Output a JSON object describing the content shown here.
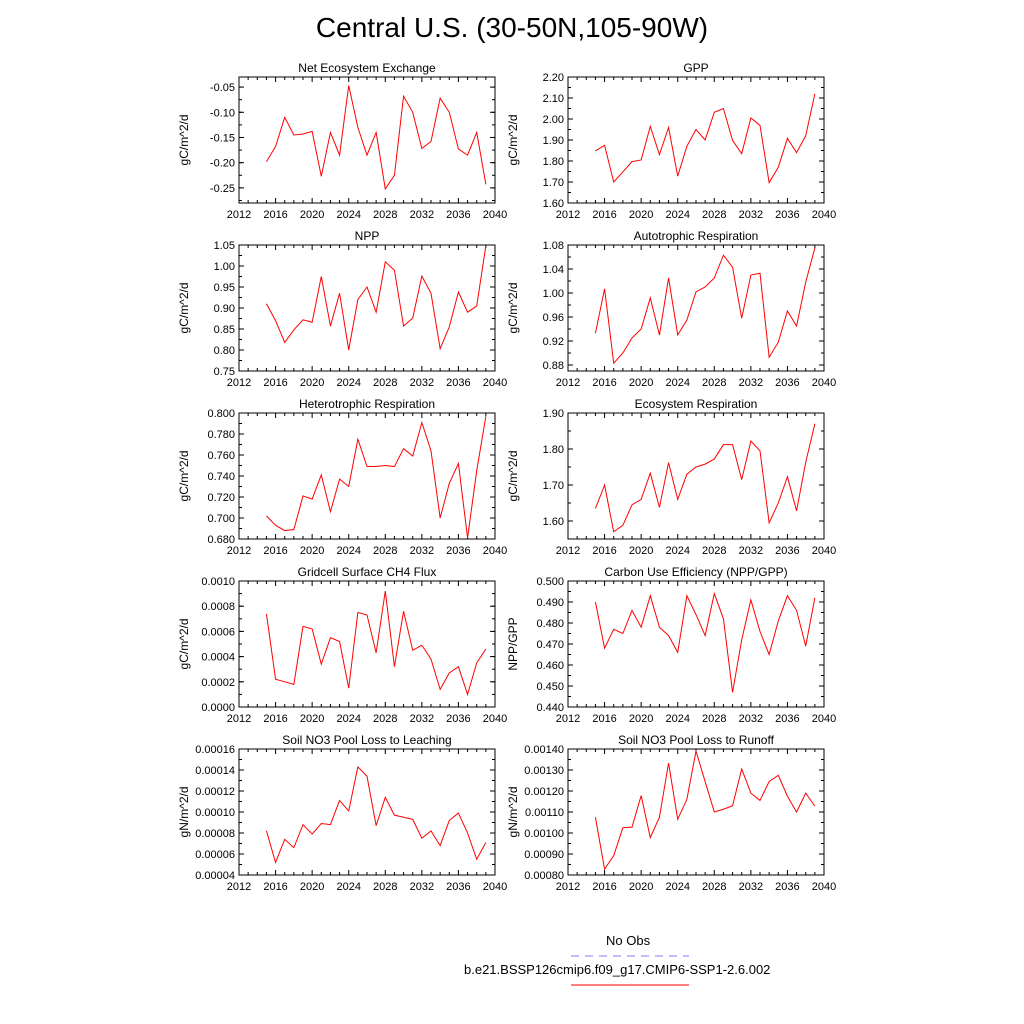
{
  "title": "Central U.S. (30-50N,105-90W)",
  "legend": {
    "obs_label": "No Obs",
    "obs_color": "#8080ff",
    "case_label": "b.e21.BSSP126cmip6.f09_g17.CMIP6-SSP1-2.6.002",
    "case_color": "#ff0000"
  },
  "chart_data": [
    {
      "type": "line",
      "title": "Net Ecosystem Exchange",
      "ylabel": "gC/m^2/d",
      "xlim": [
        2012,
        2040
      ],
      "xticks": [
        "2012",
        "2016",
        "2020",
        "2024",
        "2028",
        "2032",
        "2036",
        "2040"
      ],
      "ylim": [
        -0.28,
        -0.03
      ],
      "yticks": [
        "-0.05",
        "-0.10",
        "-0.15",
        "-0.20",
        "-0.25"
      ],
      "ytick_values": [
        -0.05,
        -0.1,
        -0.15,
        -0.2,
        -0.25
      ],
      "x": [
        2015,
        2016,
        2017,
        2018,
        2019,
        2020,
        2021,
        2022,
        2023,
        2024,
        2025,
        2026,
        2027,
        2028,
        2029,
        2030,
        2031,
        2032,
        2033,
        2034,
        2035,
        2036,
        2037,
        2038,
        2039
      ],
      "series": [
        {
          "values": [
            -0.198,
            -0.168,
            -0.11,
            -0.145,
            -0.143,
            -0.138,
            -0.227,
            -0.14,
            -0.185,
            -0.047,
            -0.13,
            -0.185,
            -0.14,
            -0.252,
            -0.225,
            -0.068,
            -0.1,
            -0.172,
            -0.158,
            -0.072,
            -0.1,
            -0.173,
            -0.185,
            -0.14,
            -0.243
          ]
        }
      ]
    },
    {
      "type": "line",
      "title": "GPP",
      "ylabel": "gC/m^2/d",
      "xlim": [
        2012,
        2040
      ],
      "xticks": [
        "2012",
        "2016",
        "2020",
        "2024",
        "2028",
        "2032",
        "2036",
        "2040"
      ],
      "ylim": [
        1.6,
        2.2
      ],
      "yticks": [
        "1.60",
        "1.70",
        "1.80",
        "1.90",
        "2.00",
        "2.10",
        "2.20"
      ],
      "ytick_values": [
        1.6,
        1.7,
        1.8,
        1.9,
        2.0,
        2.1,
        2.2
      ],
      "x": [
        2015,
        2016,
        2017,
        2018,
        2019,
        2020,
        2021,
        2022,
        2023,
        2024,
        2025,
        2026,
        2027,
        2028,
        2029,
        2030,
        2031,
        2032,
        2033,
        2034,
        2035,
        2036,
        2037,
        2038,
        2039
      ],
      "series": [
        {
          "values": [
            1.848,
            1.875,
            1.7,
            1.748,
            1.797,
            1.805,
            1.965,
            1.83,
            1.96,
            1.728,
            1.87,
            1.95,
            1.9,
            2.032,
            2.05,
            1.898,
            1.835,
            2.005,
            1.97,
            1.697,
            1.77,
            1.908,
            1.84,
            1.92,
            2.12
          ]
        }
      ]
    },
    {
      "type": "line",
      "title": "NPP",
      "ylabel": "gC/m^2/d",
      "xlim": [
        2012,
        2040
      ],
      "xticks": [
        "2012",
        "2016",
        "2020",
        "2024",
        "2028",
        "2032",
        "2036",
        "2040"
      ],
      "ylim": [
        0.75,
        1.05
      ],
      "yticks": [
        "0.75",
        "0.80",
        "0.85",
        "0.90",
        "0.95",
        "1.00",
        "1.05"
      ],
      "ytick_values": [
        0.75,
        0.8,
        0.85,
        0.9,
        0.95,
        1.0,
        1.05
      ],
      "x": [
        2015,
        2016,
        2017,
        2018,
        2019,
        2020,
        2021,
        2022,
        2023,
        2024,
        2025,
        2026,
        2027,
        2028,
        2029,
        2030,
        2031,
        2032,
        2033,
        2034,
        2035,
        2036,
        2037,
        2038,
        2039
      ],
      "series": [
        {
          "values": [
            0.91,
            0.87,
            0.818,
            0.848,
            0.872,
            0.866,
            0.975,
            0.857,
            0.935,
            0.8,
            0.92,
            0.95,
            0.89,
            1.01,
            0.99,
            0.857,
            0.876,
            0.976,
            0.935,
            0.803,
            0.855,
            0.938,
            0.89,
            0.905,
            1.048
          ]
        }
      ]
    },
    {
      "type": "line",
      "title": "Autotrophic Respiration",
      "ylabel": "gC/m^2/d",
      "xlim": [
        2012,
        2040
      ],
      "xticks": [
        "2012",
        "2016",
        "2020",
        "2024",
        "2028",
        "2032",
        "2036",
        "2040"
      ],
      "ylim": [
        0.87,
        1.08
      ],
      "yticks": [
        "0.88",
        "0.92",
        "0.96",
        "1.00",
        "1.04",
        "1.08"
      ],
      "ytick_values": [
        0.88,
        0.92,
        0.96,
        1.0,
        1.04,
        1.08
      ],
      "x": [
        2015,
        2016,
        2017,
        2018,
        2019,
        2020,
        2021,
        2022,
        2023,
        2024,
        2025,
        2026,
        2027,
        2028,
        2029,
        2030,
        2031,
        2032,
        2033,
        2034,
        2035,
        2036,
        2037,
        2038,
        2039
      ],
      "series": [
        {
          "values": [
            0.933,
            1.007,
            0.883,
            0.9,
            0.925,
            0.94,
            0.992,
            0.93,
            1.025,
            0.93,
            0.955,
            1.002,
            1.01,
            1.025,
            1.063,
            1.043,
            0.958,
            1.03,
            1.033,
            0.893,
            0.918,
            0.97,
            0.945,
            1.018,
            1.075
          ]
        }
      ]
    },
    {
      "type": "line",
      "title": "Heterotrophic Respiration",
      "ylabel": "gC/m^2/d",
      "xlim": [
        2012,
        2040
      ],
      "xticks": [
        "2012",
        "2016",
        "2020",
        "2024",
        "2028",
        "2032",
        "2036",
        "2040"
      ],
      "ylim": [
        0.68,
        0.8
      ],
      "yticks": [
        "0.680",
        "0.700",
        "0.720",
        "0.740",
        "0.760",
        "0.780",
        "0.800"
      ],
      "ytick_values": [
        0.68,
        0.7,
        0.72,
        0.74,
        0.76,
        0.78,
        0.8
      ],
      "x": [
        2015,
        2016,
        2017,
        2018,
        2019,
        2020,
        2021,
        2022,
        2023,
        2024,
        2025,
        2026,
        2027,
        2028,
        2029,
        2030,
        2031,
        2032,
        2033,
        2034,
        2035,
        2036,
        2037,
        2038,
        2039
      ],
      "series": [
        {
          "values": [
            0.702,
            0.693,
            0.688,
            0.689,
            0.721,
            0.718,
            0.741,
            0.706,
            0.737,
            0.73,
            0.775,
            0.749,
            0.749,
            0.75,
            0.749,
            0.766,
            0.759,
            0.791,
            0.764,
            0.7,
            0.733,
            0.752,
            0.681,
            0.745,
            0.797
          ]
        }
      ]
    },
    {
      "type": "line",
      "title": "Ecosystem Respiration",
      "ylabel": "gC/m^2/d",
      "xlim": [
        2012,
        2040
      ],
      "xticks": [
        "2012",
        "2016",
        "2020",
        "2024",
        "2028",
        "2032",
        "2036",
        "2040"
      ],
      "ylim": [
        1.55,
        1.9
      ],
      "yticks": [
        "1.60",
        "1.70",
        "1.80",
        "1.90"
      ],
      "ytick_values": [
        1.6,
        1.7,
        1.8,
        1.9
      ],
      "x": [
        2015,
        2016,
        2017,
        2018,
        2019,
        2020,
        2021,
        2022,
        2023,
        2024,
        2025,
        2026,
        2027,
        2028,
        2029,
        2030,
        2031,
        2032,
        2033,
        2034,
        2035,
        2036,
        2037,
        2038,
        2039
      ],
      "series": [
        {
          "values": [
            1.635,
            1.7,
            1.57,
            1.588,
            1.645,
            1.66,
            1.733,
            1.638,
            1.762,
            1.66,
            1.73,
            1.75,
            1.758,
            1.772,
            1.812,
            1.812,
            1.715,
            1.822,
            1.795,
            1.595,
            1.65,
            1.723,
            1.628,
            1.763,
            1.87
          ]
        }
      ]
    },
    {
      "type": "line",
      "title": "Gridcell Surface CH4 Flux",
      "ylabel": "gC/m^2/d",
      "xlim": [
        2012,
        2040
      ],
      "xticks": [
        "2012",
        "2016",
        "2020",
        "2024",
        "2028",
        "2032",
        "2036",
        "2040"
      ],
      "ylim": [
        0.0,
        0.001
      ],
      "yticks": [
        "0.0000",
        "0.0002",
        "0.0004",
        "0.0006",
        "0.0008",
        "0.0010"
      ],
      "ytick_values": [
        0.0,
        0.0002,
        0.0004,
        0.0006,
        0.0008,
        0.001
      ],
      "x": [
        2015,
        2016,
        2017,
        2018,
        2019,
        2020,
        2021,
        2022,
        2023,
        2024,
        2025,
        2026,
        2027,
        2028,
        2029,
        2030,
        2031,
        2032,
        2033,
        2034,
        2035,
        2036,
        2037,
        2038,
        2039
      ],
      "series": [
        {
          "values": [
            0.00074,
            0.00022,
            0.0002,
            0.00018,
            0.00064,
            0.00062,
            0.00034,
            0.00055,
            0.00052,
            0.00015,
            0.00075,
            0.00073,
            0.00043,
            0.00092,
            0.00032,
            0.00076,
            0.00045,
            0.00049,
            0.00038,
            0.00014,
            0.00027,
            0.00032,
            0.0001,
            0.00035,
            0.00046
          ]
        }
      ]
    },
    {
      "type": "line",
      "title": "Carbon Use Efficiency (NPP/GPP)",
      "ylabel": "NPP/GPP",
      "xlim": [
        2012,
        2040
      ],
      "xticks": [
        "2012",
        "2016",
        "2020",
        "2024",
        "2028",
        "2032",
        "2036",
        "2040"
      ],
      "ylim": [
        0.44,
        0.5
      ],
      "yticks": [
        "0.440",
        "0.450",
        "0.460",
        "0.470",
        "0.480",
        "0.490",
        "0.500"
      ],
      "ytick_values": [
        0.44,
        0.45,
        0.46,
        0.47,
        0.48,
        0.49,
        0.5
      ],
      "x": [
        2015,
        2016,
        2017,
        2018,
        2019,
        2020,
        2021,
        2022,
        2023,
        2024,
        2025,
        2026,
        2027,
        2028,
        2029,
        2030,
        2031,
        2032,
        2033,
        2034,
        2035,
        2036,
        2037,
        2038,
        2039
      ],
      "series": [
        {
          "values": [
            0.49,
            0.468,
            0.477,
            0.475,
            0.486,
            0.478,
            0.493,
            0.478,
            0.474,
            0.466,
            0.493,
            0.484,
            0.474,
            0.494,
            0.482,
            0.447,
            0.472,
            0.491,
            0.476,
            0.465,
            0.481,
            0.493,
            0.486,
            0.469,
            0.492
          ]
        }
      ]
    },
    {
      "type": "line",
      "title": "Soil NO3 Pool Loss to Leaching",
      "ylabel": "gN/m^2/d",
      "xlim": [
        2012,
        2040
      ],
      "xticks": [
        "2012",
        "2016",
        "2020",
        "2024",
        "2028",
        "2032",
        "2036",
        "2040"
      ],
      "ylim": [
        4e-05,
        0.00016
      ],
      "yticks": [
        "0.00004",
        "0.00006",
        "0.00008",
        "0.00010",
        "0.00012",
        "0.00014",
        "0.00016"
      ],
      "ytick_values": [
        4e-05,
        6e-05,
        8e-05,
        0.0001,
        0.00012,
        0.00014,
        0.00016
      ],
      "x": [
        2015,
        2016,
        2017,
        2018,
        2019,
        2020,
        2021,
        2022,
        2023,
        2024,
        2025,
        2026,
        2027,
        2028,
        2029,
        2030,
        2031,
        2032,
        2033,
        2034,
        2035,
        2036,
        2037,
        2038,
        2039
      ],
      "series": [
        {
          "values": [
            8.2e-05,
            5.2e-05,
            7.4e-05,
            6.6e-05,
            8.8e-05,
            7.9e-05,
            8.9e-05,
            8.8e-05,
            0.000111,
            0.000101,
            0.000143,
            0.000134,
            8.7e-05,
            0.000114,
            9.7e-05,
            9.5e-05,
            9.3e-05,
            7.5e-05,
            8.2e-05,
            6.8e-05,
            9.2e-05,
            9.9e-05,
            8e-05,
            5.5e-05,
            7.1e-05
          ]
        }
      ]
    },
    {
      "type": "line",
      "title": "Soil NO3 Pool Loss to Runoff",
      "ylabel": "gN/m^2/d",
      "xlim": [
        2012,
        2040
      ],
      "xticks": [
        "2012",
        "2016",
        "2020",
        "2024",
        "2028",
        "2032",
        "2036",
        "2040"
      ],
      "ylim": [
        0.0008,
        0.0014
      ],
      "yticks": [
        "0.00080",
        "0.00090",
        "0.00100",
        "0.00110",
        "0.00120",
        "0.00130",
        "0.00140"
      ],
      "ytick_values": [
        0.0008,
        0.0009,
        0.001,
        0.0011,
        0.0012,
        0.0013,
        0.0014
      ],
      "x": [
        2015,
        2016,
        2017,
        2018,
        2019,
        2020,
        2021,
        2022,
        2023,
        2024,
        2025,
        2026,
        2027,
        2028,
        2029,
        2030,
        2031,
        2032,
        2033,
        2034,
        2035,
        2036,
        2037,
        2038,
        2039
      ],
      "series": [
        {
          "values": [
            0.001075,
            0.000828,
            0.000892,
            0.001025,
            0.001028,
            0.001178,
            0.000978,
            0.001075,
            0.001333,
            0.001065,
            0.00116,
            0.00139,
            0.001245,
            0.0011,
            0.001113,
            0.00113,
            0.001305,
            0.00119,
            0.001155,
            0.001245,
            0.001275,
            0.001175,
            0.0011,
            0.00119,
            0.001128
          ]
        }
      ]
    }
  ]
}
